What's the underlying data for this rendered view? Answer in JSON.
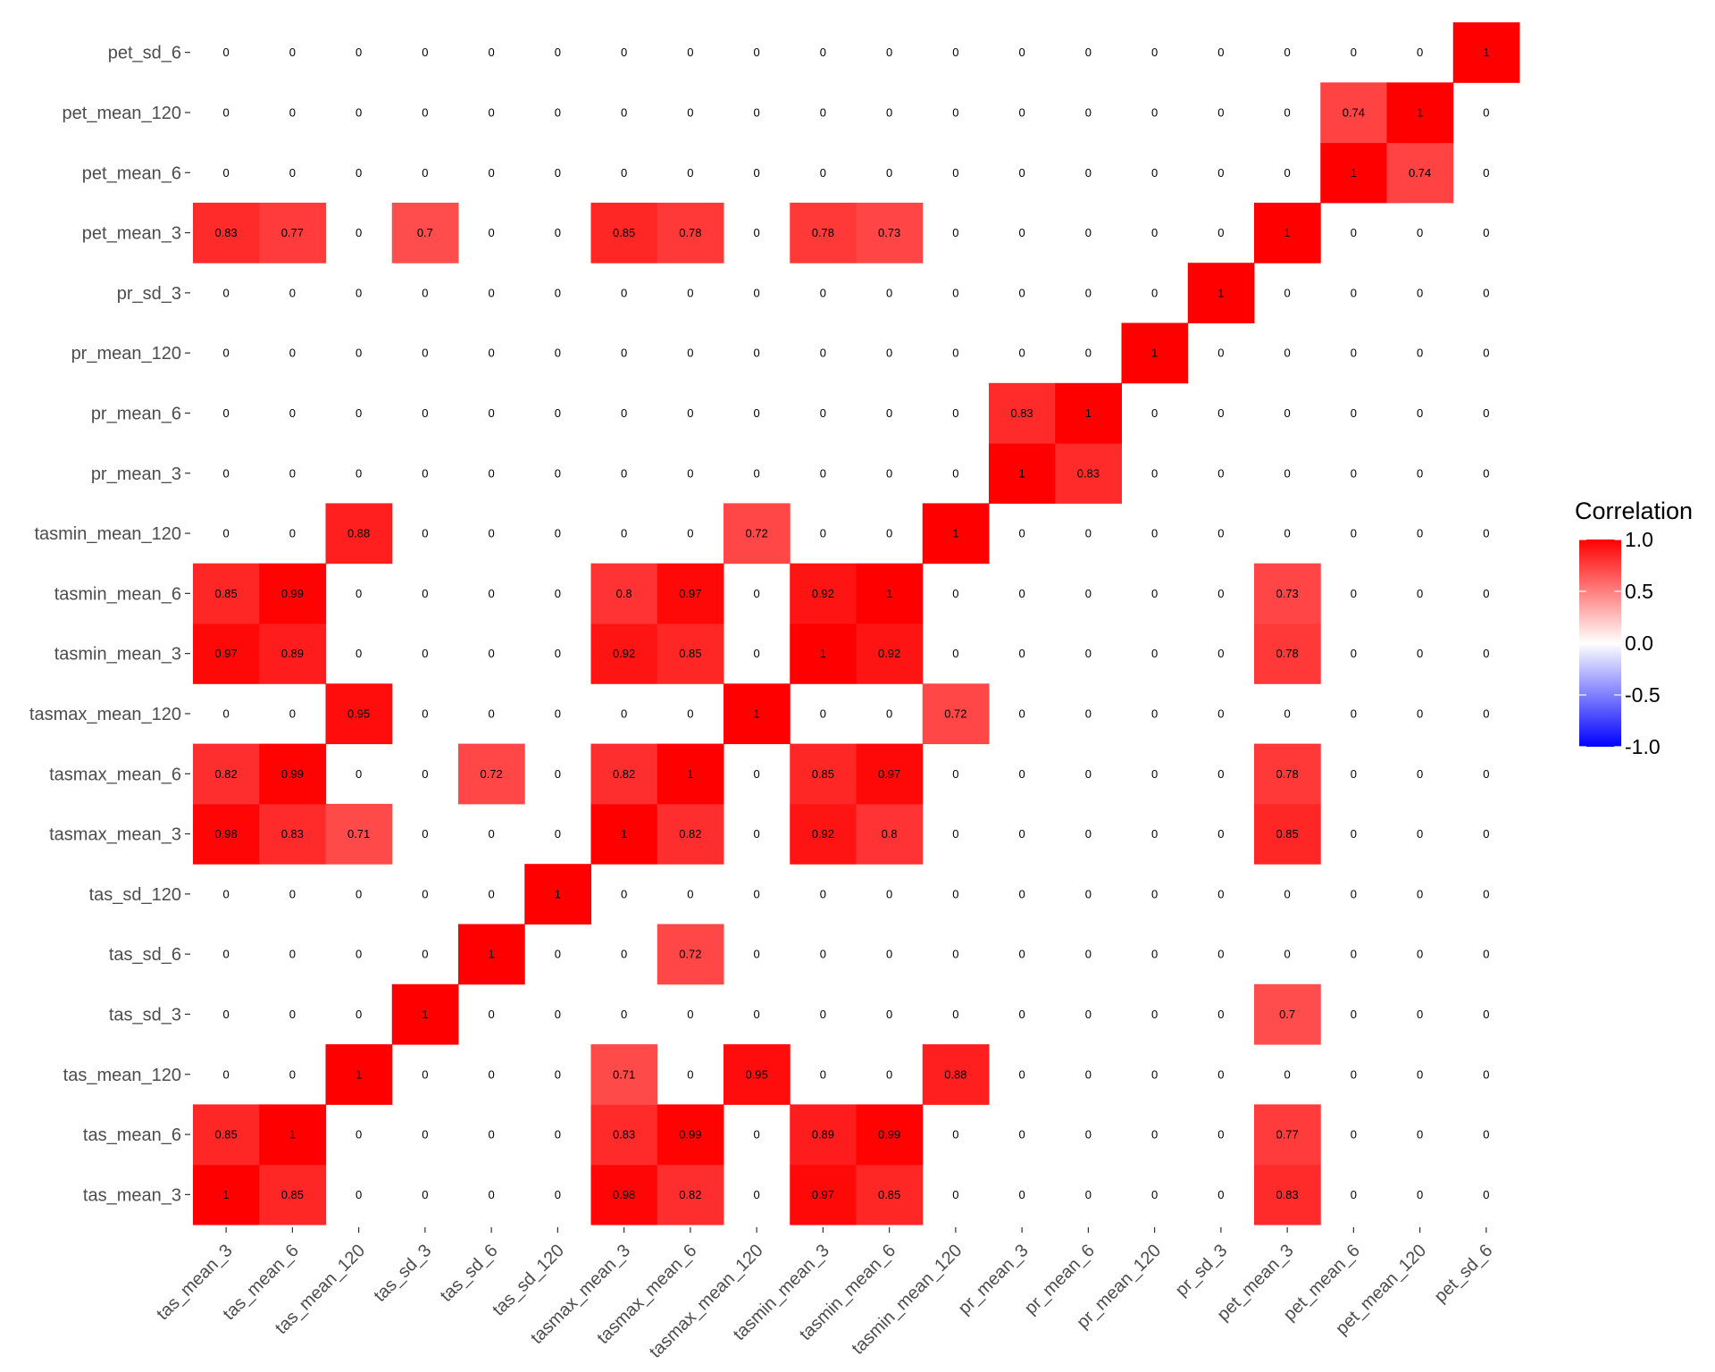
{
  "chart_data": {
    "type": "heatmap",
    "x_labels": [
      "tas_mean_3",
      "tas_mean_6",
      "tas_mean_120",
      "tas_sd_3",
      "tas_sd_6",
      "tas_sd_120",
      "tasmax_mean_3",
      "tasmax_mean_6",
      "tasmax_mean_120",
      "tasmin_mean_3",
      "tasmin_mean_6",
      "tasmin_mean_120",
      "pr_mean_3",
      "pr_mean_6",
      "pr_mean_120",
      "pr_sd_3",
      "pet_mean_3",
      "pet_mean_6",
      "pet_mean_120",
      "pet_sd_6"
    ],
    "y_labels": [
      "tas_mean_3",
      "tas_mean_6",
      "tas_mean_120",
      "tas_sd_3",
      "tas_sd_6",
      "tas_sd_120",
      "tasmax_mean_3",
      "tasmax_mean_6",
      "tasmax_mean_120",
      "tasmin_mean_3",
      "tasmin_mean_6",
      "tasmin_mean_120",
      "pr_mean_3",
      "pr_mean_6",
      "pr_mean_120",
      "pr_sd_3",
      "pet_mean_3",
      "pet_mean_6",
      "pet_mean_120",
      "pet_sd_6"
    ],
    "values": [
      [
        1,
        0.85,
        0,
        0,
        0,
        0,
        0.98,
        0.82,
        0,
        0.97,
        0.85,
        0,
        0,
        0,
        0,
        0,
        0.83,
        0,
        0,
        0
      ],
      [
        0.85,
        1,
        0,
        0,
        0,
        0,
        0.83,
        0.99,
        0,
        0.89,
        0.99,
        0,
        0,
        0,
        0,
        0,
        0.77,
        0,
        0,
        0
      ],
      [
        0,
        0,
        1,
        0,
        0,
        0,
        0.71,
        0,
        0.95,
        0,
        0,
        0.88,
        0,
        0,
        0,
        0,
        0,
        0,
        0,
        0
      ],
      [
        0,
        0,
        0,
        1,
        0,
        0,
        0,
        0,
        0,
        0,
        0,
        0,
        0,
        0,
        0,
        0,
        0.7,
        0,
        0,
        0
      ],
      [
        0,
        0,
        0,
        0,
        1,
        0,
        0,
        0.72,
        0,
        0,
        0,
        0,
        0,
        0,
        0,
        0,
        0,
        0,
        0,
        0
      ],
      [
        0,
        0,
        0,
        0,
        0,
        1,
        0,
        0,
        0,
        0,
        0,
        0,
        0,
        0,
        0,
        0,
        0,
        0,
        0,
        0
      ],
      [
        0.98,
        0.83,
        0.71,
        0,
        0,
        0,
        1,
        0.82,
        0,
        0.92,
        0.8,
        0,
        0,
        0,
        0,
        0,
        0.85,
        0,
        0,
        0
      ],
      [
        0.82,
        0.99,
        0,
        0,
        0.72,
        0,
        0.82,
        1,
        0,
        0.85,
        0.97,
        0,
        0,
        0,
        0,
        0,
        0.78,
        0,
        0,
        0
      ],
      [
        0,
        0,
        0.95,
        0,
        0,
        0,
        0,
        0,
        1,
        0,
        0,
        0.72,
        0,
        0,
        0,
        0,
        0,
        0,
        0,
        0
      ],
      [
        0.97,
        0.89,
        0,
        0,
        0,
        0,
        0.92,
        0.85,
        0,
        1,
        0.92,
        0,
        0,
        0,
        0,
        0,
        0.78,
        0,
        0,
        0
      ],
      [
        0.85,
        0.99,
        0,
        0,
        0,
        0,
        0.8,
        0.97,
        0,
        0.92,
        1,
        0,
        0,
        0,
        0,
        0,
        0.73,
        0,
        0,
        0
      ],
      [
        0,
        0,
        0.88,
        0,
        0,
        0,
        0,
        0,
        0.72,
        0,
        0,
        1,
        0,
        0,
        0,
        0,
        0,
        0,
        0,
        0
      ],
      [
        0,
        0,
        0,
        0,
        0,
        0,
        0,
        0,
        0,
        0,
        0,
        0,
        1,
        0.83,
        0,
        0,
        0,
        0,
        0,
        0
      ],
      [
        0,
        0,
        0,
        0,
        0,
        0,
        0,
        0,
        0,
        0,
        0,
        0,
        0.83,
        1,
        0,
        0,
        0,
        0,
        0,
        0
      ],
      [
        0,
        0,
        0,
        0,
        0,
        0,
        0,
        0,
        0,
        0,
        0,
        0,
        0,
        0,
        1,
        0,
        0,
        0,
        0,
        0
      ],
      [
        0,
        0,
        0,
        0,
        0,
        0,
        0,
        0,
        0,
        0,
        0,
        0,
        0,
        0,
        0,
        1,
        0,
        0,
        0,
        0
      ],
      [
        0.83,
        0.77,
        0,
        0.7,
        0,
        0,
        0.85,
        0.78,
        0,
        0.78,
        0.73,
        0,
        0,
        0,
        0,
        0,
        1,
        0,
        0,
        0
      ],
      [
        0,
        0,
        0,
        0,
        0,
        0,
        0,
        0,
        0,
        0,
        0,
        0,
        0,
        0,
        0,
        0,
        0,
        1,
        0.74,
        0
      ],
      [
        0,
        0,
        0,
        0,
        0,
        0,
        0,
        0,
        0,
        0,
        0,
        0,
        0,
        0,
        0,
        0,
        0,
        0.74,
        1,
        0
      ],
      [
        0,
        0,
        0,
        0,
        0,
        0,
        0,
        0,
        0,
        0,
        0,
        0,
        0,
        0,
        0,
        0,
        0,
        0,
        0,
        1
      ]
    ],
    "legend": {
      "title": "Correlation",
      "range": [
        -1,
        1
      ],
      "ticks": [
        "1.0",
        "0.5",
        "0.0",
        "-0.5",
        "-1.0"
      ],
      "colors": {
        "low": "#0000FF",
        "mid": "#FFFFFF",
        "high": "#FF0000"
      },
      "placement": "right"
    },
    "grid": false
  }
}
